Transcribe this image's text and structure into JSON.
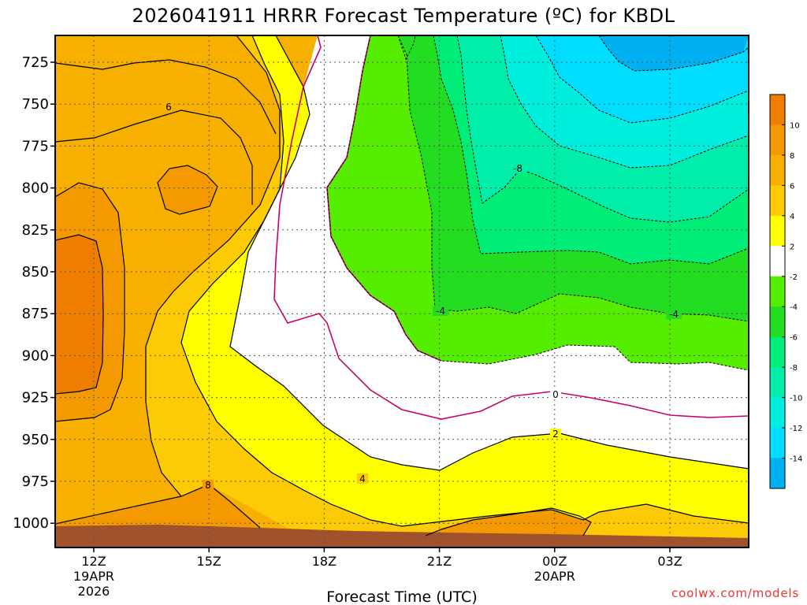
{
  "chart_data": {
    "type": "heatmap",
    "title": "2026041911 HRRR Forecast Temperature (ºC) for KBDL",
    "xlabel": "Forecast Time (UTC)",
    "ylabel": "",
    "credit": "coolwx.com/models",
    "y_scale": "pressure (hPa), inverted",
    "ylim": [
      1010,
      712
    ],
    "x_ticks": [
      {
        "label": "12Z",
        "sub1": "19APR",
        "sub2": "2026"
      },
      {
        "label": "15Z",
        "sub1": "",
        "sub2": ""
      },
      {
        "label": "18Z",
        "sub1": "",
        "sub2": ""
      },
      {
        "label": "21Z",
        "sub1": "",
        "sub2": ""
      },
      {
        "label": "00Z",
        "sub1": "20APR",
        "sub2": ""
      },
      {
        "label": "03Z",
        "sub1": "",
        "sub2": ""
      }
    ],
    "y_ticks": [
      "725",
      "750",
      "775",
      "800",
      "825",
      "850",
      "875",
      "900",
      "925",
      "950",
      "975",
      "1000"
    ],
    "grid": true,
    "colorbar": {
      "position": "right",
      "tick_labels": [
        "10",
        "8",
        "6",
        "4",
        "2",
        "-2",
        "-4",
        "-6",
        "-8",
        "-10",
        "-12",
        "-14"
      ],
      "bins": [
        {
          "range": "> 10",
          "color": "#ee7d00"
        },
        {
          "range": "8 to 10",
          "color": "#f49a00"
        },
        {
          "range": "6 to 8",
          "color": "#f7b000"
        },
        {
          "range": "4 to 6",
          "color": "#fccb05"
        },
        {
          "range": "2 to 4",
          "color": "#ffff00"
        },
        {
          "range": "-2 to 2",
          "color": "#ffffff"
        },
        {
          "range": "-4 to -2",
          "color": "#55ee00"
        },
        {
          "range": "-6 to -4",
          "color": "#22dd22"
        },
        {
          "range": "-8 to -6",
          "color": "#00ee77"
        },
        {
          "range": "-10 to -8",
          "color": "#00eeaa"
        },
        {
          "range": "-12 to -10",
          "color": "#00eedd"
        },
        {
          "range": "-14 to -12",
          "color": "#00ddff"
        },
        {
          "range": "< -14",
          "color": "#00b0f0"
        }
      ]
    },
    "contour_labels": [
      "6",
      "8",
      "4",
      "0",
      "2",
      "-4",
      "-8",
      "-4"
    ],
    "colors": {
      "ground": "#a0522d",
      "freezing_line": "#cc0066"
    }
  }
}
